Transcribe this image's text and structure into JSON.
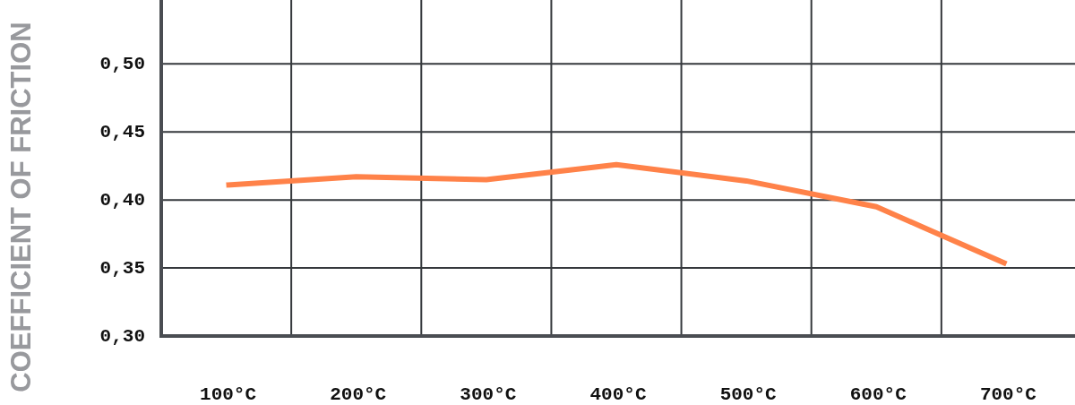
{
  "chart_data": {
    "type": "line",
    "ylabel": "COEFFICIENT OF FRICTION",
    "categories": [
      "100°C",
      "200°C",
      "300°C",
      "400°C",
      "500°C",
      "600°C",
      "700°C"
    ],
    "values": [
      0.411,
      0.417,
      0.415,
      0.426,
      0.414,
      0.395,
      0.353
    ],
    "color": "#ff8249",
    "ylim": [
      0.3,
      0.547
    ],
    "yticks": [
      {
        "value": 0.3,
        "label": "0,30"
      },
      {
        "value": 0.35,
        "label": "0,35"
      },
      {
        "value": 0.4,
        "label": "0,40"
      },
      {
        "value": 0.45,
        "label": "0,45"
      },
      {
        "value": 0.5,
        "label": "0,50"
      }
    ],
    "grid": true
  }
}
